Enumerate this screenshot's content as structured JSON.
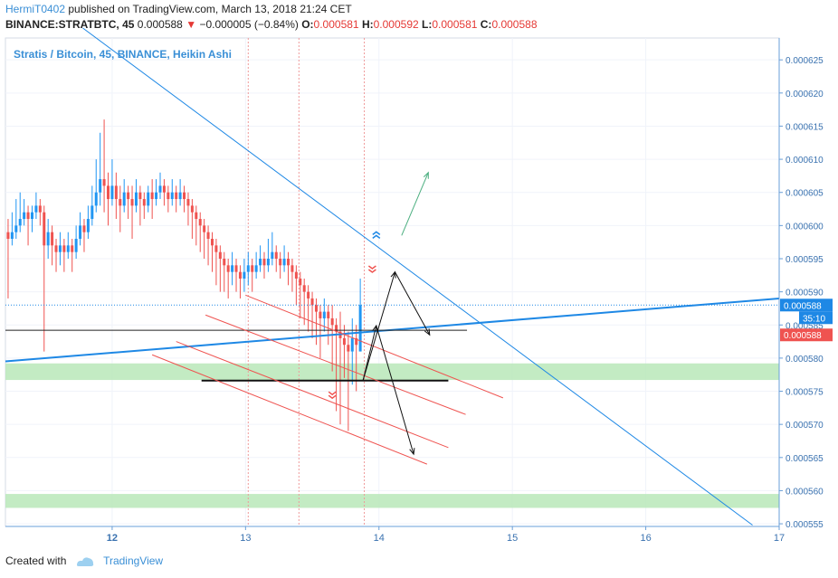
{
  "header": {
    "author": "HermiT0402",
    "published_text": "published on TradingView.com, March 13, 2018 21:24 CET",
    "symbol": "BINANCE:STRATBTC, 45",
    "price": "0.000588",
    "change": "−0.000005 (−0.84%)",
    "o_label": "O:",
    "o_value": "0.000581",
    "h_label": "H:",
    "h_value": "0.000592",
    "l_label": "L:",
    "l_value": "0.000581",
    "c_label": "C:",
    "c_value": "0.000588"
  },
  "footer": {
    "created_with": "Created with",
    "brand": "TradingView"
  },
  "colors": {
    "up": "#2196f3",
    "down": "#ef5350",
    "trend": "#1e88e5",
    "zone": "#b9e8b9",
    "grid": "#f0f3fa"
  },
  "chart_data": {
    "type": "candlestick",
    "title": "Stratis / Bitcoin, 45, BINANCE, Heikin Ashi",
    "xlabel": "",
    "ylabel": "",
    "x_ticks": [
      "12",
      "13",
      "14",
      "15",
      "16",
      "17"
    ],
    "x_tick_values": [
      12,
      13,
      14,
      15,
      16,
      17
    ],
    "xlim": [
      11.2,
      17.0
    ],
    "y_ticks": [
      "0.000555",
      "0.000560",
      "0.000565",
      "0.000570",
      "0.000575",
      "0.000580",
      "0.000585",
      "0.000590",
      "0.000595",
      "0.000600",
      "0.000605",
      "0.000610",
      "0.000615",
      "0.000620",
      "0.000625"
    ],
    "ylim": [
      0.0005546,
      0.0006283
    ],
    "last_price_label": "0.000588",
    "last_price": 0.000588,
    "countdown_label": "35:10",
    "low_label": "0.000588",
    "low_label_value": 0.0005835,
    "zones": [
      {
        "from": 0.0005767,
        "to": 0.0005792
      },
      {
        "from": 0.0005574,
        "to": 0.0005595
      }
    ],
    "candles": [
      [
        11.22,
        0.000599,
        0.000598,
        0.000601,
        0.000589,
        "down"
      ],
      [
        11.25,
        0.000598,
        0.000599,
        0.000602,
        0.000597,
        "up"
      ],
      [
        11.28,
        0.000599,
        0.0006,
        0.000604,
        0.000598,
        "up"
      ],
      [
        11.31,
        0.0006,
        0.000601,
        0.000605,
        0.000599,
        "up"
      ],
      [
        11.34,
        0.000601,
        0.000602,
        0.000604,
        0.0006,
        "up"
      ],
      [
        11.37,
        0.000602,
        0.000601,
        0.000603,
        0.000597,
        "down"
      ],
      [
        11.4,
        0.000601,
        0.000602,
        0.000603,
        0.000599,
        "up"
      ],
      [
        11.43,
        0.000602,
        0.000603,
        0.000605,
        0.000601,
        "up"
      ],
      [
        11.46,
        0.000603,
        0.000602,
        0.000604,
        0.0006,
        "down"
      ],
      [
        11.49,
        0.000602,
        0.000597,
        0.000603,
        0.000581,
        "down"
      ],
      [
        11.52,
        0.000597,
        0.000599,
        0.000601,
        0.000595,
        "up"
      ],
      [
        11.55,
        0.000599,
        0.000597,
        0.0006,
        0.000594,
        "down"
      ],
      [
        11.58,
        0.000597,
        0.000596,
        0.000598,
        0.000593,
        "down"
      ],
      [
        11.61,
        0.000596,
        0.000597,
        0.000599,
        0.000594,
        "up"
      ],
      [
        11.64,
        0.000597,
        0.000596,
        0.000598,
        0.000593,
        "down"
      ],
      [
        11.67,
        0.000596,
        0.000597,
        0.000599,
        0.000595,
        "up"
      ],
      [
        11.7,
        0.000597,
        0.000596,
        0.000598,
        0.000593,
        "down"
      ],
      [
        11.73,
        0.000596,
        0.000598,
        0.0006,
        0.000595,
        "up"
      ],
      [
        11.76,
        0.000598,
        0.0006,
        0.000602,
        0.000597,
        "up"
      ],
      [
        11.79,
        0.0006,
        0.000599,
        0.000601,
        0.000596,
        "down"
      ],
      [
        11.82,
        0.000599,
        0.000601,
        0.000603,
        0.000598,
        "up"
      ],
      [
        11.85,
        0.000601,
        0.000603,
        0.000606,
        0.0006,
        "up"
      ],
      [
        11.88,
        0.000603,
        0.000605,
        0.00061,
        0.000602,
        "up"
      ],
      [
        11.91,
        0.000605,
        0.000607,
        0.000614,
        0.000603,
        "up"
      ],
      [
        11.94,
        0.000607,
        0.000606,
        0.000616,
        0.000602,
        "down"
      ],
      [
        11.97,
        0.000606,
        0.000604,
        0.000608,
        0.0006,
        "down"
      ],
      [
        12.0,
        0.000604,
        0.000606,
        0.00061,
        0.000603,
        "up"
      ],
      [
        12.03,
        0.000606,
        0.000604,
        0.000608,
        0.000601,
        "down"
      ],
      [
        12.06,
        0.000604,
        0.000603,
        0.000606,
        0.000599,
        "down"
      ],
      [
        12.09,
        0.000603,
        0.000605,
        0.000607,
        0.000602,
        "up"
      ],
      [
        12.12,
        0.000605,
        0.000604,
        0.000606,
        0.000601,
        "down"
      ],
      [
        12.15,
        0.000604,
        0.000603,
        0.000606,
        0.000598,
        "down"
      ],
      [
        12.18,
        0.000603,
        0.000605,
        0.000607,
        0.000602,
        "up"
      ],
      [
        12.21,
        0.000605,
        0.000604,
        0.000606,
        0.0006,
        "down"
      ],
      [
        12.24,
        0.000604,
        0.000603,
        0.000605,
        0.000601,
        "down"
      ],
      [
        12.27,
        0.000603,
        0.000605,
        0.000606,
        0.000602,
        "up"
      ],
      [
        12.3,
        0.000605,
        0.000604,
        0.000607,
        0.000601,
        "down"
      ],
      [
        12.33,
        0.000604,
        0.000605,
        0.000607,
        0.000603,
        "up"
      ],
      [
        12.36,
        0.000605,
        0.000606,
        0.000608,
        0.000604,
        "up"
      ],
      [
        12.39,
        0.000606,
        0.000605,
        0.000607,
        0.000603,
        "down"
      ],
      [
        12.42,
        0.000605,
        0.000604,
        0.000606,
        0.000602,
        "down"
      ],
      [
        12.45,
        0.000604,
        0.000605,
        0.000607,
        0.000603,
        "up"
      ],
      [
        12.48,
        0.000605,
        0.000604,
        0.000606,
        0.000602,
        "down"
      ],
      [
        12.51,
        0.000604,
        0.000605,
        0.000607,
        0.000603,
        "up"
      ],
      [
        12.54,
        0.000605,
        0.000604,
        0.000606,
        0.000602,
        "down"
      ],
      [
        12.57,
        0.000604,
        0.000603,
        0.000605,
        0.0006,
        "down"
      ],
      [
        12.6,
        0.000603,
        0.000602,
        0.000604,
        0.000598,
        "down"
      ],
      [
        12.63,
        0.000602,
        0.000601,
        0.000603,
        0.000597,
        "down"
      ],
      [
        12.66,
        0.000601,
        0.0006,
        0.000602,
        0.000596,
        "down"
      ],
      [
        12.69,
        0.0006,
        0.000599,
        0.000601,
        0.000595,
        "down"
      ],
      [
        12.72,
        0.000599,
        0.000598,
        0.0006,
        0.000594,
        "down"
      ],
      [
        12.75,
        0.000598,
        0.000597,
        0.000599,
        0.000593,
        "down"
      ],
      [
        12.78,
        0.000597,
        0.000596,
        0.000598,
        0.000591,
        "down"
      ],
      [
        12.81,
        0.000596,
        0.000595,
        0.000597,
        0.00059,
        "down"
      ],
      [
        12.84,
        0.000595,
        0.000594,
        0.000596,
        0.00059,
        "down"
      ],
      [
        12.87,
        0.000594,
        0.000593,
        0.000595,
        0.000589,
        "down"
      ],
      [
        12.9,
        0.000593,
        0.000594,
        0.000596,
        0.000591,
        "up"
      ],
      [
        12.93,
        0.000594,
        0.000593,
        0.000595,
        0.00059,
        "down"
      ],
      [
        12.96,
        0.000593,
        0.000592,
        0.000594,
        0.000589,
        "down"
      ],
      [
        12.99,
        0.000592,
        0.000593,
        0.000595,
        0.00059,
        "up"
      ],
      [
        13.02,
        0.000593,
        0.000594,
        0.000596,
        0.000591,
        "up"
      ],
      [
        13.05,
        0.000594,
        0.000593,
        0.000595,
        0.00059,
        "down"
      ],
      [
        13.08,
        0.000593,
        0.000594,
        0.000596,
        0.000592,
        "up"
      ],
      [
        13.11,
        0.000594,
        0.000595,
        0.000597,
        0.000593,
        "up"
      ],
      [
        13.14,
        0.000595,
        0.000594,
        0.000596,
        0.000592,
        "down"
      ],
      [
        13.17,
        0.000594,
        0.000595,
        0.000598,
        0.000593,
        "up"
      ],
      [
        13.2,
        0.000595,
        0.000596,
        0.000599,
        0.000594,
        "up"
      ],
      [
        13.23,
        0.000596,
        0.000595,
        0.000597,
        0.000593,
        "down"
      ],
      [
        13.26,
        0.000595,
        0.000594,
        0.000596,
        0.000592,
        "down"
      ],
      [
        13.29,
        0.000594,
        0.000595,
        0.000597,
        0.000593,
        "up"
      ],
      [
        13.32,
        0.000595,
        0.000594,
        0.000596,
        0.000591,
        "down"
      ],
      [
        13.35,
        0.000594,
        0.000593,
        0.000595,
        0.00059,
        "down"
      ],
      [
        13.38,
        0.000593,
        0.000592,
        0.000594,
        0.000588,
        "down"
      ],
      [
        13.41,
        0.000592,
        0.000591,
        0.000593,
        0.000586,
        "down"
      ],
      [
        13.44,
        0.000591,
        0.00059,
        0.000592,
        0.000585,
        "down"
      ],
      [
        13.47,
        0.00059,
        0.000589,
        0.000591,
        0.000584,
        "down"
      ],
      [
        13.5,
        0.000589,
        0.000588,
        0.00059,
        0.000583,
        "down"
      ],
      [
        13.53,
        0.000588,
        0.000587,
        0.000589,
        0.000582,
        "down"
      ],
      [
        13.56,
        0.000587,
        0.000586,
        0.000588,
        0.00058,
        "down"
      ],
      [
        13.59,
        0.000586,
        0.000587,
        0.000589,
        0.000584,
        "up"
      ],
      [
        13.62,
        0.000587,
        0.000586,
        0.000588,
        0.000582,
        "down"
      ],
      [
        13.65,
        0.000586,
        0.000585,
        0.000588,
        0.000578,
        "down"
      ],
      [
        13.68,
        0.000585,
        0.000584,
        0.000586,
        0.000572,
        "down"
      ],
      [
        13.71,
        0.000584,
        0.000583,
        0.000587,
        0.00057,
        "down"
      ],
      [
        13.74,
        0.000583,
        0.000582,
        0.000585,
        0.000577,
        "down"
      ],
      [
        13.77,
        0.000582,
        0.000581,
        0.000584,
        0.000569,
        "down"
      ],
      [
        13.8,
        0.000581,
        0.000583,
        0.000586,
        0.000576,
        "up"
      ],
      [
        13.83,
        0.000583,
        0.000582,
        0.000585,
        0.000575,
        "down"
      ],
      [
        13.86,
        0.000581,
        0.000588,
        0.000592,
        0.000581,
        "up"
      ]
    ],
    "lines": [
      {
        "kind": "trend",
        "x1": 11.78,
        "y1": 0.0006298,
        "x2": 16.8,
        "y2": 0.0005548,
        "color": "#1e88e5",
        "width": 1
      },
      {
        "kind": "trend",
        "x1": 11.2,
        "y1": 0.0005795,
        "x2": 17.0,
        "y2": 0.000589,
        "color": "#1e88e5",
        "width": 2
      },
      {
        "kind": "hline",
        "x1": 11.2,
        "y1": 0.0005842,
        "x2": 14.66,
        "y2": 0.0005842,
        "color": "#222222",
        "width": 1
      },
      {
        "kind": "hline",
        "x1": 12.67,
        "y1": 0.0005766,
        "x2": 14.52,
        "y2": 0.0005766,
        "color": "#111111",
        "width": 2
      },
      {
        "kind": "channel",
        "x1": 13.0,
        "y1": 0.0005895,
        "x2": 14.93,
        "y2": 0.000574,
        "color": "#ef5350",
        "width": 1
      },
      {
        "kind": "channel",
        "x1": 12.7,
        "y1": 0.0005865,
        "x2": 14.65,
        "y2": 0.0005715,
        "color": "#ef5350",
        "width": 1
      },
      {
        "kind": "channel",
        "x1": 12.48,
        "y1": 0.0005825,
        "x2": 14.52,
        "y2": 0.0005665,
        "color": "#ef5350",
        "width": 1
      },
      {
        "kind": "channel",
        "x1": 12.3,
        "y1": 0.0005805,
        "x2": 14.36,
        "y2": 0.000564,
        "color": "#ef5350",
        "width": 1
      }
    ],
    "arrows": [
      {
        "x1": 13.88,
        "y1": 0.0005766,
        "x2": 14.12,
        "y2": 0.000593,
        "color": "#111111"
      },
      {
        "x1": 14.12,
        "y1": 0.000593,
        "x2": 14.38,
        "y2": 0.0005835,
        "color": "#111111"
      },
      {
        "x1": 13.88,
        "y1": 0.0005766,
        "x2": 13.98,
        "y2": 0.0005849,
        "color": "#111111"
      },
      {
        "x1": 13.98,
        "y1": 0.0005849,
        "x2": 14.26,
        "y2": 0.0005655,
        "color": "#111111"
      },
      {
        "x1": 14.17,
        "y1": 0.0005985,
        "x2": 14.37,
        "y2": 0.000608,
        "color": "#4caf80"
      }
    ],
    "vlines": [
      13.02,
      13.4,
      13.89
    ],
    "markers": [
      {
        "x": 13.98,
        "y": 0.0005985,
        "dir": "up",
        "color": "#1e88e5"
      },
      {
        "x": 13.95,
        "y": 0.0005935,
        "dir": "down",
        "color": "#ef5350"
      },
      {
        "x": 13.65,
        "y": 0.0005745,
        "dir": "down",
        "color": "#ef5350"
      }
    ]
  }
}
